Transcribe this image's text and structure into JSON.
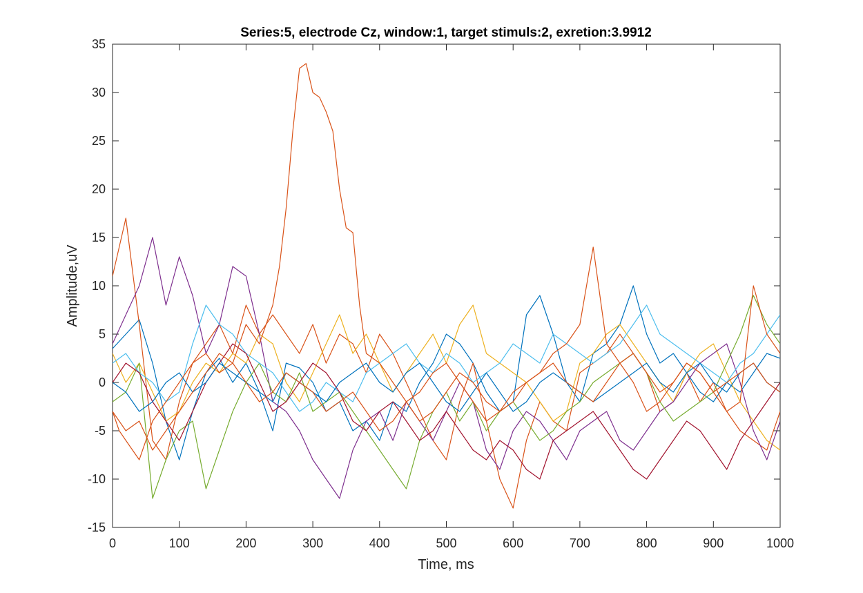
{
  "chart_data": {
    "type": "line",
    "title": "Series:5, electrode Cz, window:1, target stimuls:2, exretion:3.9912",
    "xlabel": "Time, ms",
    "ylabel": "Amplitude,uV",
    "xlim": [
      0,
      1000
    ],
    "ylim": [
      -15,
      35
    ],
    "xticks": [
      0,
      100,
      200,
      300,
      400,
      500,
      600,
      700,
      800,
      900,
      1000
    ],
    "yticks": [
      -15,
      -10,
      -5,
      0,
      5,
      10,
      15,
      20,
      25,
      30,
      35
    ],
    "grid": false,
    "legend": "none",
    "x": [
      0,
      20,
      40,
      60,
      80,
      100,
      120,
      140,
      160,
      180,
      200,
      220,
      240,
      260,
      280,
      300,
      320,
      340,
      360,
      380,
      400,
      420,
      440,
      460,
      480,
      500,
      520,
      540,
      560,
      580,
      600,
      620,
      640,
      660,
      680,
      700,
      720,
      740,
      760,
      780,
      800,
      820,
      840,
      860,
      880,
      900,
      920,
      940,
      960,
      980,
      1000
    ],
    "series": [
      {
        "color": "#0072BD",
        "values": [
          3.5,
          5,
          6.5,
          2,
          -4,
          -8,
          -3,
          1,
          2.5,
          0,
          2,
          -1,
          -5,
          2,
          1.5,
          0,
          -3,
          -2,
          -5,
          -4,
          -6,
          -2,
          -3,
          0,
          2,
          5,
          4,
          2,
          -1,
          -3,
          -2,
          7,
          9,
          5,
          0,
          -2,
          3,
          4,
          6,
          10,
          5,
          2,
          3,
          1,
          -1,
          -2,
          0,
          -1,
          1,
          3,
          2.5
        ]
      },
      {
        "color": "#D95319",
        "values": [
          11,
          17,
          6,
          -6,
          -8,
          -2,
          2,
          4,
          6,
          3,
          8,
          5,
          7,
          5,
          3,
          6,
          2,
          5,
          4,
          1,
          5,
          3,
          0,
          -3,
          -6,
          -8,
          -2,
          2,
          -4,
          -10,
          -13,
          -6,
          -2,
          -4,
          -5,
          1,
          2,
          3,
          5,
          3,
          1,
          -3,
          -2,
          1,
          -2,
          0,
          -3,
          -5,
          -6,
          -7,
          -3
        ]
      },
      {
        "color": "#EDB120",
        "values": [
          3,
          0,
          2,
          -1,
          -4,
          -3,
          0,
          2,
          1,
          3,
          2,
          5,
          4,
          0,
          -2,
          1,
          4,
          7,
          3,
          5,
          2,
          -1,
          1,
          3,
          5,
          2,
          6,
          8,
          3,
          2,
          1,
          0,
          -2,
          -4,
          -3,
          2,
          3,
          5,
          6,
          4,
          2,
          0,
          -2,
          1,
          3,
          4,
          1,
          -2,
          -4,
          -6,
          -7
        ]
      },
      {
        "color": "#7E2F8E",
        "values": [
          4,
          7,
          10,
          15,
          8,
          13,
          9,
          3,
          6,
          12,
          11,
          5,
          -2,
          -3,
          -5,
          -8,
          -10,
          -12,
          -7,
          -4,
          -3,
          -6,
          -2,
          -4,
          -6,
          -3,
          0,
          -2,
          -7,
          -9,
          -5,
          -3,
          -4,
          -6,
          -8,
          -5,
          -4,
          -3,
          -6,
          -7,
          -5,
          -3,
          -2,
          0,
          2,
          3,
          4,
          0,
          -5,
          -8,
          -4
        ]
      },
      {
        "color": "#77AC30",
        "values": [
          -2,
          -1,
          2,
          -12,
          -8,
          -5,
          -4,
          -11,
          -7,
          -3,
          0,
          2,
          -1,
          -2,
          1,
          -3,
          -2,
          -1,
          -3,
          -5,
          -7,
          -9,
          -11,
          -6,
          -3,
          -1,
          -4,
          -2,
          -5,
          -3,
          -2,
          -4,
          -6,
          -5,
          -3,
          -2,
          0,
          1,
          2,
          3,
          1,
          -2,
          -4,
          -3,
          -2,
          -1,
          2,
          5,
          9,
          6,
          4
        ]
      },
      {
        "color": "#4DBEEE",
        "values": [
          2,
          3,
          1,
          0,
          -2,
          -1,
          4,
          8,
          6,
          5,
          3,
          2,
          1,
          -1,
          -3,
          -2,
          0,
          -1,
          -2,
          1,
          2,
          3,
          4,
          2,
          1,
          3,
          2,
          0,
          1,
          2,
          4,
          3,
          2,
          5,
          4,
          3,
          2,
          3,
          4,
          6,
          8,
          5,
          4,
          3,
          2,
          1,
          0,
          2,
          3,
          5,
          7
        ]
      },
      {
        "color": "#A2142F",
        "values": [
          0,
          2,
          1,
          -2,
          -4,
          -6,
          -3,
          0,
          2,
          4,
          3,
          0,
          -3,
          -2,
          0,
          2,
          1,
          -1,
          -4,
          -5,
          -3,
          -2,
          -4,
          -6,
          -5,
          -3,
          -5,
          -7,
          -8,
          -6,
          -7,
          -9,
          -10,
          -6,
          -5,
          -4,
          -3,
          -5,
          -7,
          -9,
          -10,
          -8,
          -6,
          -4,
          -5,
          -7,
          -9,
          -6,
          -4,
          -2,
          0
        ]
      },
      {
        "color": "#0072BD",
        "values": [
          0,
          -1,
          -3,
          -2,
          0,
          1,
          -1,
          0,
          2,
          1,
          0,
          -1,
          -2,
          1,
          0,
          -1,
          -2,
          0,
          1,
          2,
          0,
          -1,
          1,
          2,
          0,
          -2,
          -3,
          -1,
          1,
          -1,
          -3,
          -2,
          0,
          1,
          0,
          -1,
          -2,
          -1,
          0,
          1,
          2,
          0,
          -1,
          1,
          2,
          0,
          -1,
          1,
          2,
          0,
          -1
        ]
      },
      {
        "color": "#D95319",
        "values": [
          -3,
          -5,
          -4,
          -7,
          -5,
          -3,
          -1,
          1,
          3,
          2,
          0,
          -2,
          -1,
          1,
          0,
          -1,
          -3,
          -2,
          -1,
          -3,
          -5,
          -4,
          -2,
          -1,
          1,
          2,
          0,
          -2,
          -4,
          -3,
          -2,
          0,
          1,
          3,
          4,
          6,
          14,
          4,
          2,
          0,
          -3,
          -2,
          0,
          2,
          1,
          -1,
          -3,
          -2,
          10,
          5,
          3
        ]
      }
    ],
    "highlight_series": {
      "color": "#D95319",
      "x": [
        0,
        10,
        20,
        40,
        60,
        80,
        100,
        120,
        140,
        160,
        180,
        200,
        220,
        240,
        250,
        260,
        270,
        280,
        290,
        300,
        310,
        320,
        330,
        340,
        350,
        360,
        370,
        380,
        400,
        420,
        440,
        460,
        480,
        500,
        520,
        540,
        560,
        580,
        600,
        620,
        640,
        660,
        680,
        700,
        720,
        740,
        760,
        780,
        800,
        820,
        840,
        860,
        880,
        900,
        920,
        940,
        960,
        980,
        1000
      ],
      "values": [
        -3,
        -5,
        -6,
        -8,
        -4,
        -2,
        0,
        2,
        3,
        1,
        2,
        6,
        4,
        8,
        12,
        18,
        26,
        32.5,
        33,
        30,
        29.5,
        28,
        26,
        20,
        16,
        15.5,
        8,
        3,
        2,
        0,
        -2,
        -4,
        -3,
        -1,
        1,
        0,
        -2,
        -3,
        -1,
        0,
        1,
        2,
        0,
        -1,
        -2,
        0,
        2,
        3,
        1,
        -1,
        0,
        2,
        1,
        -1,
        0,
        1,
        2,
        0,
        -1
      ]
    }
  }
}
